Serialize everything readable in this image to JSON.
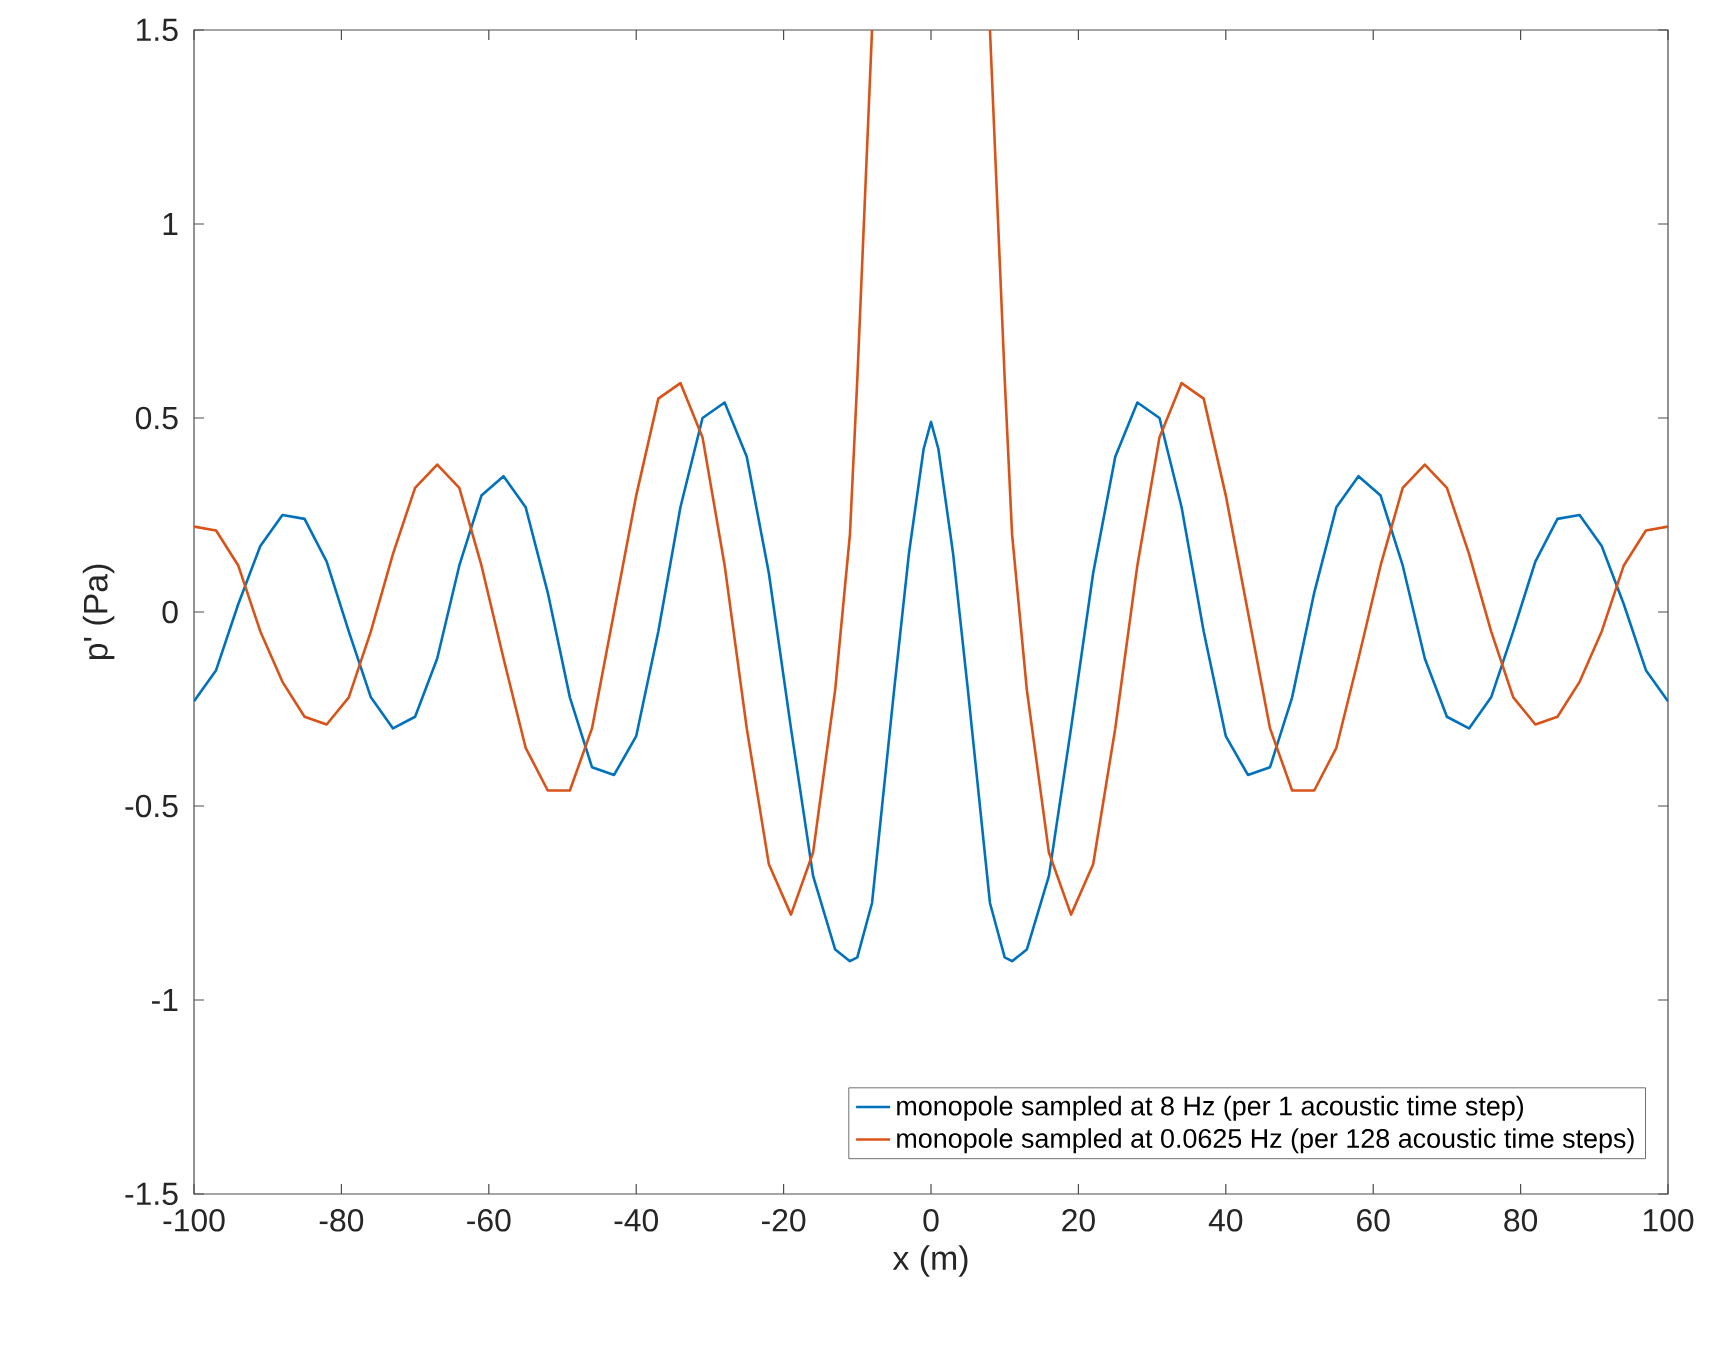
{
  "chart_data": {
    "type": "line",
    "xlabel": "x (m)",
    "ylabel": "p' (Pa)",
    "xlim": [
      -100,
      100
    ],
    "ylim": [
      -1.5,
      1.5
    ],
    "xticks": [
      -100,
      -80,
      -60,
      -40,
      -20,
      0,
      20,
      40,
      60,
      80,
      100
    ],
    "yticks": [
      -1.5,
      -1,
      -0.5,
      0,
      0.5,
      1,
      1.5
    ],
    "legend": "bottom right",
    "x": [
      -100,
      -97,
      -94,
      -91,
      -88,
      -85,
      -82,
      -79,
      -76,
      -73,
      -70,
      -67,
      -64,
      -61,
      -58,
      -55,
      -52,
      -49,
      -46,
      -43,
      -40,
      -37,
      -34,
      -31,
      -28,
      -25,
      -22,
      -19,
      -16,
      -13,
      -11,
      -10,
      -8,
      -5,
      -3,
      -1,
      0,
      1,
      3,
      5,
      8,
      10,
      11,
      13,
      16,
      19,
      22,
      25,
      28,
      31,
      34,
      37,
      40,
      43,
      46,
      49,
      52,
      55,
      58,
      61,
      64,
      67,
      70,
      73,
      76,
      79,
      82,
      85,
      88,
      91,
      94,
      97,
      100
    ],
    "series": [
      {
        "name": "monopole sampled at 8 Hz (per 1 acoustic time step)",
        "color": "#0072bd",
        "values": [
          -0.23,
          -0.15,
          0.02,
          0.17,
          0.25,
          0.24,
          0.13,
          -0.05,
          -0.22,
          -0.3,
          -0.27,
          -0.12,
          0.12,
          0.3,
          0.35,
          0.27,
          0.05,
          -0.22,
          -0.4,
          -0.42,
          -0.32,
          -0.05,
          0.27,
          0.5,
          0.54,
          0.4,
          0.1,
          -0.3,
          -0.68,
          -0.87,
          -0.9,
          -0.89,
          -0.75,
          -0.2,
          0.15,
          0.42,
          0.49,
          0.42,
          0.15,
          -0.2,
          -0.75,
          -0.89,
          -0.9,
          -0.87,
          -0.68,
          -0.3,
          0.1,
          0.4,
          0.54,
          0.5,
          0.27,
          -0.05,
          -0.32,
          -0.42,
          -0.4,
          -0.22,
          0.05,
          0.27,
          0.35,
          0.3,
          0.12,
          -0.12,
          -0.27,
          -0.3,
          -0.22,
          -0.05,
          0.13,
          0.24,
          0.25,
          0.17,
          0.02,
          -0.15,
          -0.23
        ]
      },
      {
        "name": "monopole sampled at 0.0625 Hz (per 128 acoustic time steps)",
        "color": "#d95319",
        "values": [
          0.22,
          0.21,
          0.12,
          -0.05,
          -0.18,
          -0.27,
          -0.29,
          -0.22,
          -0.05,
          0.15,
          0.32,
          0.38,
          0.32,
          0.12,
          -0.12,
          -0.35,
          -0.46,
          -0.46,
          -0.3,
          0.0,
          0.3,
          0.55,
          0.59,
          0.45,
          0.12,
          -0.3,
          -0.65,
          -0.78,
          -0.62,
          -0.2,
          0.2,
          0.6,
          1.5,
          null,
          null,
          null,
          null,
          null,
          null,
          null,
          1.5,
          0.6,
          0.2,
          -0.2,
          -0.62,
          -0.78,
          -0.65,
          -0.3,
          0.12,
          0.45,
          0.59,
          0.55,
          0.3,
          0.0,
          -0.3,
          -0.46,
          -0.46,
          -0.35,
          -0.12,
          0.12,
          0.32,
          0.38,
          0.32,
          0.15,
          -0.05,
          -0.22,
          -0.29,
          -0.27,
          -0.18,
          -0.05,
          0.12,
          0.21,
          0.22
        ]
      }
    ]
  }
}
